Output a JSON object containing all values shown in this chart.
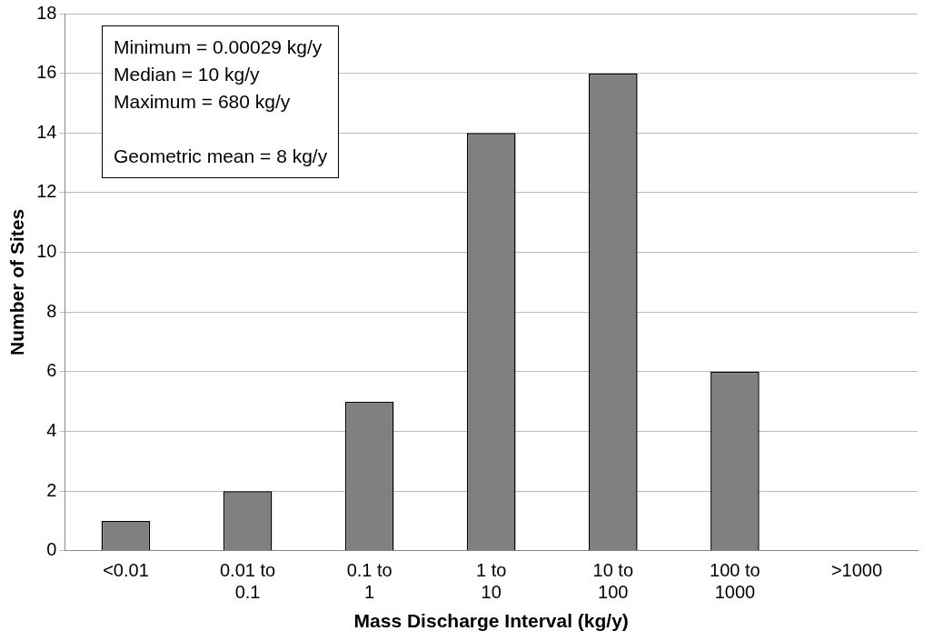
{
  "chart_data": {
    "type": "bar",
    "categories": [
      "<0.01",
      "0.01 to 0.1",
      "0.1 to 1",
      "1 to 10",
      "10 to 100",
      "100 to 1000",
      ">1000"
    ],
    "values": [
      1,
      2,
      5,
      14,
      16,
      6,
      0
    ],
    "color": "#808080",
    "xlabel": "Mass Discharge Interval (kg/y)",
    "ylabel": "Number of Sites",
    "ylim": [
      0,
      18
    ],
    "yticks": [
      0,
      2,
      4,
      6,
      8,
      10,
      12,
      14,
      16,
      18
    ],
    "grid": "y",
    "legend": false,
    "annotations": [
      "Minimum = 0.00029 kg/y",
      "Median = 10 kg/y",
      "Maximum = 680 kg/y",
      "Geometric mean = 8 kg/y"
    ]
  }
}
